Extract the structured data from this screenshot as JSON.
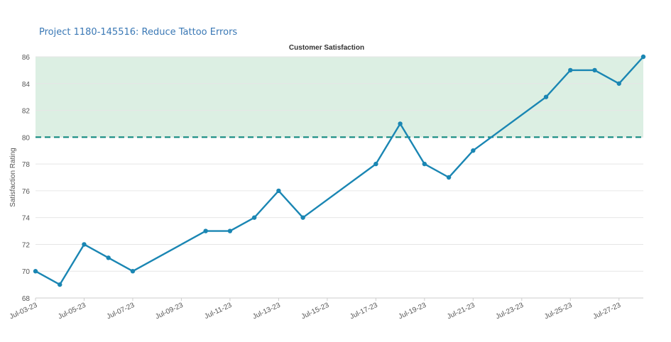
{
  "header": {
    "project_title": "Project 1180-145516: Reduce Tattoo Errors"
  },
  "chart_data": {
    "type": "line",
    "title": "Customer Satisfaction",
    "xlabel": "",
    "ylabel": "Satisfaction Rating",
    "ylim": [
      68,
      86
    ],
    "yticks": [
      68,
      70,
      72,
      74,
      76,
      78,
      80,
      82,
      84,
      86
    ],
    "xlim": [
      "2023-07-03",
      "2023-07-28"
    ],
    "xtick_dates": [
      "2023-07-03",
      "2023-07-05",
      "2023-07-07",
      "2023-07-09",
      "2023-07-11",
      "2023-07-13",
      "2023-07-15",
      "2023-07-17",
      "2023-07-19",
      "2023-07-21",
      "2023-07-23",
      "2023-07-25",
      "2023-07-27"
    ],
    "xtick_labels": [
      "Jul-03-23",
      "Jul-05-23",
      "Jul-07-23",
      "Jul-09-23",
      "Jul-11-23",
      "Jul-13-23",
      "Jul-15-23",
      "Jul-17-23",
      "Jul-19-23",
      "Jul-21-23",
      "Jul-23-23",
      "Jul-25-23",
      "Jul-27-23"
    ],
    "target": 80,
    "target_band": [
      80,
      86
    ],
    "grid": true,
    "series": [
      {
        "x": [
          "2023-07-03",
          "2023-07-04",
          "2023-07-05",
          "2023-07-06",
          "2023-07-07",
          "2023-07-10",
          "2023-07-11",
          "2023-07-12",
          "2023-07-13",
          "2023-07-14",
          "2023-07-17",
          "2023-07-18",
          "2023-07-19",
          "2023-07-20",
          "2023-07-21",
          "2023-07-24",
          "2023-07-25",
          "2023-07-26",
          "2023-07-27",
          "2023-07-28"
        ],
        "values": [
          70,
          69,
          72,
          71,
          70,
          73,
          73,
          74,
          76,
          74,
          78,
          81,
          78,
          77,
          79,
          83,
          85,
          85,
          84,
          86
        ]
      }
    ],
    "colors": {
      "line": "#1a86b3",
      "target_line": "#138a80",
      "band": "#dcefe3",
      "grid": "#e6e6e6"
    }
  }
}
